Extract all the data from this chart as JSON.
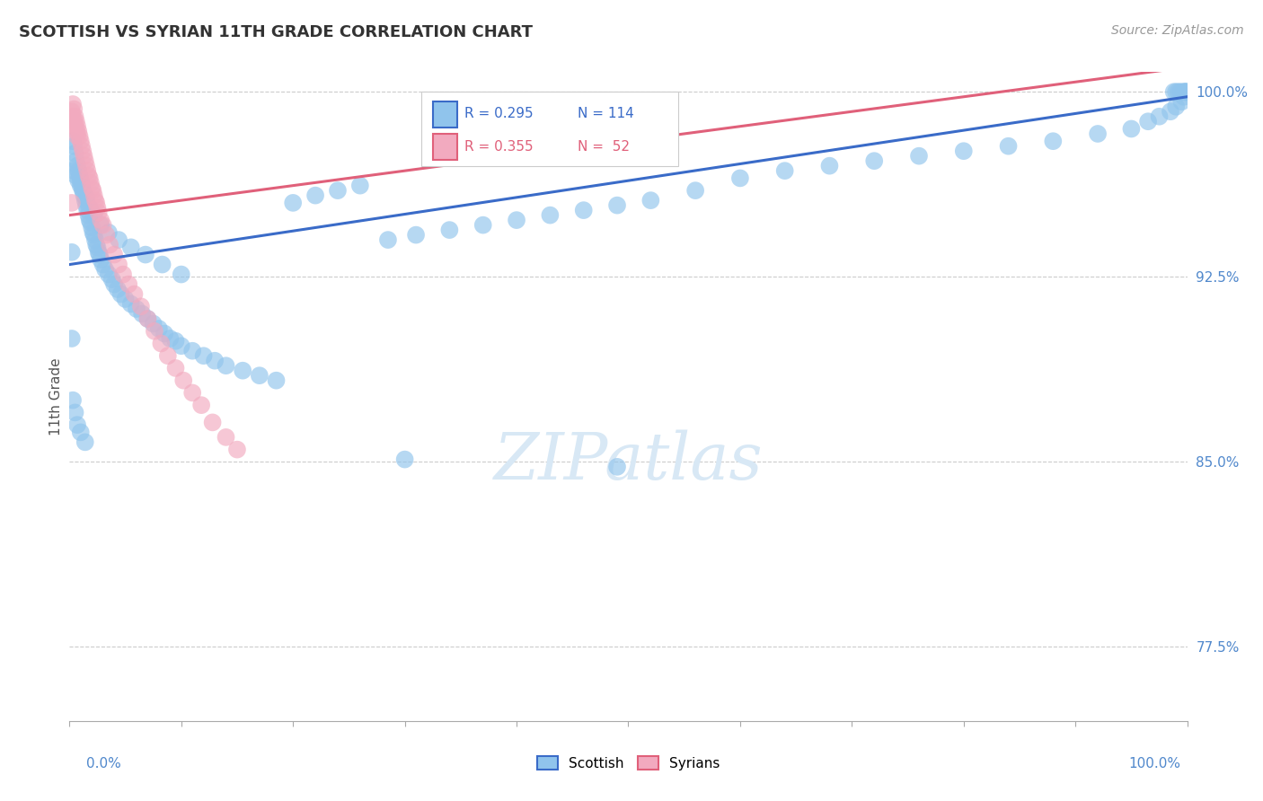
{
  "title": "SCOTTISH VS SYRIAN 11TH GRADE CORRELATION CHART",
  "source": "Source: ZipAtlas.com",
  "ylabel": "11th Grade",
  "ylabel_right_labels": [
    "100.0%",
    "92.5%",
    "85.0%",
    "77.5%"
  ],
  "ylabel_right_values": [
    1.0,
    0.925,
    0.85,
    0.775
  ],
  "xmin": 0.0,
  "xmax": 1.0,
  "ymin": 0.745,
  "ymax": 1.008,
  "legend_blue_r": "R = 0.295",
  "legend_blue_n": "N = 114",
  "legend_pink_r": "R = 0.355",
  "legend_pink_n": "N =  52",
  "scottish_color": "#90C4EC",
  "syrian_color": "#F2AABF",
  "line_blue_color": "#3A6BC8",
  "line_pink_color": "#E0607A",
  "watermark_color": "#D8E8F5",
  "blue_line_x0": 0.0,
  "blue_line_y0": 0.93,
  "blue_line_x1": 1.0,
  "blue_line_y1": 0.998,
  "pink_line_x0": 0.0,
  "pink_line_y0": 0.95,
  "pink_line_x1": 1.0,
  "pink_line_y1": 1.01,
  "scot_x": [
    0.003,
    0.004,
    0.005,
    0.006,
    0.007,
    0.008,
    0.009,
    0.01,
    0.011,
    0.012,
    0.013,
    0.014,
    0.015,
    0.016,
    0.017,
    0.018,
    0.019,
    0.02,
    0.021,
    0.022,
    0.023,
    0.024,
    0.025,
    0.026,
    0.027,
    0.028,
    0.03,
    0.032,
    0.035,
    0.038,
    0.04,
    0.043,
    0.046,
    0.05,
    0.055,
    0.06,
    0.065,
    0.07,
    0.075,
    0.08,
    0.085,
    0.09,
    0.095,
    0.1,
    0.11,
    0.12,
    0.13,
    0.14,
    0.155,
    0.17,
    0.185,
    0.2,
    0.22,
    0.24,
    0.26,
    0.285,
    0.31,
    0.34,
    0.37,
    0.4,
    0.43,
    0.46,
    0.49,
    0.52,
    0.56,
    0.6,
    0.64,
    0.68,
    0.72,
    0.76,
    0.8,
    0.84,
    0.88,
    0.92,
    0.95,
    0.965,
    0.975,
    0.985,
    0.99,
    0.995,
    0.997,
    0.998,
    0.999,
    0.999,
    0.998,
    0.996,
    0.994,
    0.992,
    0.99,
    0.988,
    0.004,
    0.006,
    0.008,
    0.01,
    0.012,
    0.015,
    0.018,
    0.022,
    0.028,
    0.035,
    0.044,
    0.055,
    0.068,
    0.083,
    0.1,
    0.003,
    0.005,
    0.007,
    0.01,
    0.014,
    0.3,
    0.49,
    0.002,
    0.002
  ],
  "scot_y": [
    0.98,
    0.978,
    0.975,
    0.972,
    0.97,
    0.968,
    0.966,
    0.964,
    0.962,
    0.96,
    0.958,
    0.956,
    0.954,
    0.952,
    0.95,
    0.948,
    0.947,
    0.945,
    0.943,
    0.942,
    0.94,
    0.938,
    0.937,
    0.935,
    0.934,
    0.932,
    0.93,
    0.928,
    0.926,
    0.924,
    0.922,
    0.92,
    0.918,
    0.916,
    0.914,
    0.912,
    0.91,
    0.908,
    0.906,
    0.904,
    0.902,
    0.9,
    0.899,
    0.897,
    0.895,
    0.893,
    0.891,
    0.889,
    0.887,
    0.885,
    0.883,
    0.955,
    0.958,
    0.96,
    0.962,
    0.94,
    0.942,
    0.944,
    0.946,
    0.948,
    0.95,
    0.952,
    0.954,
    0.956,
    0.96,
    0.965,
    0.968,
    0.97,
    0.972,
    0.974,
    0.976,
    0.978,
    0.98,
    0.983,
    0.985,
    0.988,
    0.99,
    0.992,
    0.994,
    0.996,
    0.998,
    1.0,
    1.0,
    1.0,
    1.0,
    1.0,
    1.0,
    1.0,
    1.0,
    1.0,
    0.968,
    0.966,
    0.964,
    0.962,
    0.96,
    0.957,
    0.953,
    0.95,
    0.946,
    0.943,
    0.94,
    0.937,
    0.934,
    0.93,
    0.926,
    0.875,
    0.87,
    0.865,
    0.862,
    0.858,
    0.851,
    0.848,
    0.935,
    0.9
  ],
  "syr_x": [
    0.003,
    0.004,
    0.005,
    0.006,
    0.007,
    0.008,
    0.009,
    0.01,
    0.011,
    0.012,
    0.013,
    0.014,
    0.015,
    0.016,
    0.017,
    0.018,
    0.019,
    0.02,
    0.021,
    0.022,
    0.023,
    0.024,
    0.025,
    0.026,
    0.028,
    0.03,
    0.033,
    0.036,
    0.04,
    0.044,
    0.048,
    0.053,
    0.058,
    0.064,
    0.07,
    0.076,
    0.082,
    0.088,
    0.095,
    0.102,
    0.11,
    0.118,
    0.128,
    0.14,
    0.15,
    0.002,
    0.003,
    0.004,
    0.005,
    0.006,
    0.007,
    0.002
  ],
  "syr_y": [
    0.995,
    0.993,
    0.99,
    0.988,
    0.986,
    0.984,
    0.982,
    0.98,
    0.978,
    0.976,
    0.974,
    0.972,
    0.97,
    0.968,
    0.966,
    0.965,
    0.963,
    0.961,
    0.96,
    0.958,
    0.956,
    0.955,
    0.953,
    0.951,
    0.948,
    0.946,
    0.942,
    0.938,
    0.934,
    0.93,
    0.926,
    0.922,
    0.918,
    0.913,
    0.908,
    0.903,
    0.898,
    0.893,
    0.888,
    0.883,
    0.878,
    0.873,
    0.866,
    0.86,
    0.855,
    0.992,
    0.99,
    0.988,
    0.986,
    0.984,
    0.982,
    0.955
  ]
}
